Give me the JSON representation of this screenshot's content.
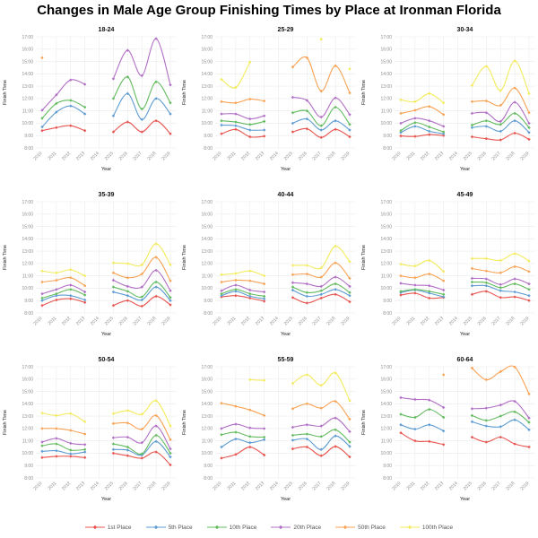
{
  "figure": {
    "title": "Changes in Male Age Group Finishing Times by Place at Ironman Florida"
  },
  "chart_data": {
    "type": "line",
    "title": "Changes in Male Age Group Finishing Times by Place at Ironman Florida",
    "xlabel": "Year",
    "ylabel": "Finish Time",
    "x": [
      2010,
      2011,
      2012,
      2013,
      2014,
      2015,
      2016,
      2017,
      2018,
      2019
    ],
    "ylim": [
      8,
      17
    ],
    "ytick_labels": [
      "8:00",
      "9:00",
      "10:00",
      "11:00",
      "12:00",
      "13:00",
      "14:00",
      "15:00",
      "16:00",
      "17:00"
    ],
    "grid": true,
    "legend_position": "bottom",
    "legend": [
      {
        "name": "1st Place",
        "color": "#e8544f"
      },
      {
        "name": "5th Place",
        "color": "#5e9cd3"
      },
      {
        "name": "10th Place",
        "color": "#63bb5f"
      },
      {
        "name": "20th Place",
        "color": "#b16fc5"
      },
      {
        "name": "50th Place",
        "color": "#f8a254"
      },
      {
        "name": "100th Place",
        "color": "#f3eb5c"
      }
    ],
    "panels": [
      {
        "title": "18-24",
        "series": [
          {
            "name": "1st Place",
            "values": [
              9.4,
              9.65,
              9.8,
              9.4,
              null,
              9.3,
              10.1,
              9.3,
              10.2,
              9.15
            ]
          },
          {
            "name": "5th Place",
            "values": [
              9.7,
              10.9,
              11.4,
              10.75,
              null,
              10.6,
              12.4,
              10.3,
              12.0,
              10.75
            ]
          },
          {
            "name": "10th Place",
            "values": [
              10.4,
              11.6,
              11.85,
              11.3,
              null,
              12.0,
              13.75,
              11.15,
              13.35,
              11.65
            ]
          },
          {
            "name": "20th Place",
            "values": [
              11.05,
              12.3,
              13.5,
              13.15,
              null,
              13.6,
              15.9,
              13.85,
              16.85,
              13.1
            ]
          },
          {
            "name": "50th Place",
            "values": [
              15.3,
              null,
              null,
              null,
              null,
              null,
              null,
              null,
              null,
              null
            ]
          },
          {
            "name": "100th Place",
            "values": [
              null,
              null,
              null,
              null,
              null,
              null,
              null,
              null,
              null,
              null
            ]
          }
        ]
      },
      {
        "title": "25-29",
        "series": [
          {
            "name": "1st Place",
            "values": [
              9.15,
              9.5,
              8.9,
              8.95,
              null,
              9.3,
              9.55,
              8.85,
              9.5,
              8.9
            ]
          },
          {
            "name": "5th Place",
            "values": [
              9.85,
              9.8,
              9.45,
              9.45,
              null,
              10.0,
              10.35,
              9.45,
              10.2,
              9.45
            ]
          },
          {
            "name": "10th Place",
            "values": [
              10.2,
              10.1,
              9.9,
              10.15,
              null,
              10.85,
              11.0,
              9.8,
              11.3,
              9.9
            ]
          },
          {
            "name": "20th Place",
            "values": [
              10.75,
              10.75,
              10.35,
              10.6,
              null,
              12.1,
              11.85,
              10.5,
              12.05,
              10.7
            ]
          },
          {
            "name": "50th Place",
            "values": [
              11.75,
              11.65,
              11.95,
              11.8,
              null,
              14.55,
              15.3,
              12.6,
              14.65,
              12.45
            ]
          },
          {
            "name": "100th Place",
            "values": [
              13.55,
              12.9,
              14.95,
              null,
              null,
              null,
              null,
              16.8,
              null,
              14.4
            ]
          }
        ]
      },
      {
        "title": "30-34",
        "series": [
          {
            "name": "1st Place",
            "values": [
              8.97,
              8.93,
              9.08,
              9.0,
              null,
              8.9,
              8.75,
              8.65,
              9.2,
              8.7
            ]
          },
          {
            "name": "5th Place",
            "values": [
              9.25,
              9.75,
              9.35,
              9.15,
              null,
              9.65,
              9.75,
              9.35,
              10.2,
              9.25
            ]
          },
          {
            "name": "10th Place",
            "values": [
              9.4,
              10.05,
              9.7,
              9.3,
              null,
              9.85,
              10.2,
              9.9,
              10.8,
              9.65
            ]
          },
          {
            "name": "20th Place",
            "values": [
              10.0,
              10.4,
              10.2,
              9.75,
              null,
              10.8,
              10.85,
              10.15,
              11.7,
              10.0
            ]
          },
          {
            "name": "50th Place",
            "values": [
              10.8,
              11.05,
              11.35,
              10.7,
              null,
              11.75,
              11.8,
              11.45,
              12.85,
              10.85
            ]
          },
          {
            "name": "100th Place",
            "values": [
              11.9,
              11.75,
              12.4,
              11.65,
              null,
              13.05,
              14.6,
              12.65,
              15.05,
              12.4
            ]
          }
        ]
      },
      {
        "title": "35-39",
        "series": [
          {
            "name": "1st Place",
            "values": [
              8.6,
              9.05,
              9.15,
              8.85,
              null,
              8.6,
              9.0,
              8.55,
              9.35,
              8.65
            ]
          },
          {
            "name": "5th Place",
            "values": [
              9.0,
              9.4,
              9.4,
              9.05,
              null,
              9.7,
              9.4,
              9.05,
              10.1,
              9.0
            ]
          },
          {
            "name": "10th Place",
            "values": [
              9.2,
              9.55,
              9.9,
              9.45,
              null,
              10.1,
              9.75,
              9.3,
              10.5,
              9.25
            ]
          },
          {
            "name": "20th Place",
            "values": [
              9.55,
              9.9,
              10.25,
              9.7,
              null,
              10.65,
              10.15,
              10.1,
              11.45,
              9.8
            ]
          },
          {
            "name": "50th Place",
            "values": [
              10.5,
              10.65,
              10.85,
              10.2,
              null,
              11.25,
              10.85,
              11.15,
              12.5,
              10.6
            ]
          },
          {
            "name": "100th Place",
            "values": [
              11.4,
              11.25,
              11.5,
              11.0,
              null,
              12.05,
              12.0,
              11.9,
              13.6,
              11.9
            ]
          }
        ]
      },
      {
        "title": "40-44",
        "series": [
          {
            "name": "1st Place",
            "values": [
              9.3,
              9.4,
              9.2,
              8.95,
              null,
              9.25,
              8.8,
              9.2,
              9.5,
              8.9
            ]
          },
          {
            "name": "5th Place",
            "values": [
              9.4,
              9.75,
              9.35,
              9.15,
              null,
              9.85,
              9.35,
              9.5,
              9.9,
              9.4
            ]
          },
          {
            "name": "10th Place",
            "values": [
              9.55,
              9.9,
              9.55,
              9.35,
              null,
              10.1,
              9.65,
              9.8,
              10.35,
              9.65
            ]
          },
          {
            "name": "20th Place",
            "values": [
              9.8,
              10.25,
              9.85,
              9.7,
              null,
              10.45,
              10.35,
              10.15,
              10.9,
              10.15
            ]
          },
          {
            "name": "50th Place",
            "values": [
              10.5,
              10.65,
              10.6,
              10.35,
              null,
              11.1,
              11.15,
              10.9,
              12.05,
              10.8
            ]
          },
          {
            "name": "100th Place",
            "values": [
              11.1,
              11.2,
              11.4,
              11.0,
              null,
              11.85,
              11.85,
              11.65,
              13.4,
              12.15
            ]
          }
        ]
      },
      {
        "title": "45-49",
        "series": [
          {
            "name": "1st Place",
            "values": [
              9.45,
              9.6,
              9.2,
              9.25,
              null,
              9.5,
              9.75,
              9.25,
              9.3,
              9.0
            ]
          },
          {
            "name": "5th Place",
            "values": [
              9.65,
              9.85,
              9.6,
              9.3,
              null,
              10.2,
              10.2,
              9.8,
              9.7,
              9.4
            ]
          },
          {
            "name": "10th Place",
            "values": [
              9.75,
              9.9,
              9.75,
              9.5,
              null,
              10.5,
              10.45,
              10.05,
              10.35,
              9.9
            ]
          },
          {
            "name": "20th Place",
            "values": [
              10.4,
              10.25,
              10.2,
              9.85,
              null,
              10.8,
              10.75,
              10.3,
              10.75,
              10.35
            ]
          },
          {
            "name": "50th Place",
            "values": [
              11.0,
              10.85,
              11.15,
              10.6,
              null,
              11.6,
              11.4,
              11.25,
              11.75,
              11.35
            ]
          },
          {
            "name": "100th Place",
            "values": [
              11.95,
              11.8,
              12.25,
              11.35,
              null,
              12.4,
              12.4,
              12.25,
              12.8,
              12.2
            ]
          }
        ]
      },
      {
        "title": "50-54",
        "series": [
          {
            "name": "1st Place",
            "values": [
              9.65,
              9.75,
              9.75,
              9.65,
              null,
              10.0,
              9.8,
              9.6,
              10.1,
              9.05
            ]
          },
          {
            "name": "5th Place",
            "values": [
              10.15,
              10.2,
              9.95,
              10.1,
              null,
              10.3,
              10.25,
              9.85,
              10.95,
              9.7
            ]
          },
          {
            "name": "10th Place",
            "values": [
              10.6,
              10.75,
              10.25,
              10.3,
              null,
              10.75,
              10.5,
              9.95,
              11.45,
              10.0
            ]
          },
          {
            "name": "20th Place",
            "values": [
              10.9,
              11.2,
              10.8,
              10.7,
              null,
              11.25,
              11.3,
              10.85,
              12.2,
              10.35
            ]
          },
          {
            "name": "50th Place",
            "values": [
              12.0,
              12.0,
              11.85,
              11.55,
              null,
              12.4,
              12.45,
              11.95,
              13.05,
              11.1
            ]
          },
          {
            "name": "100th Place",
            "values": [
              13.25,
              13.05,
              13.2,
              12.55,
              null,
              13.2,
              13.45,
              13.15,
              14.25,
              12.2
            ]
          }
        ]
      },
      {
        "title": "55-59",
        "series": [
          {
            "name": "1st Place",
            "values": [
              9.6,
              9.9,
              10.5,
              9.85,
              null,
              10.35,
              10.5,
              9.8,
              10.55,
              9.7
            ]
          },
          {
            "name": "5th Place",
            "values": [
              10.5,
              11.15,
              10.85,
              11.1,
              null,
              11.05,
              11.15,
              10.3,
              11.4,
              10.55
            ]
          },
          {
            "name": "10th Place",
            "values": [
              11.5,
              11.7,
              11.35,
              11.3,
              null,
              11.45,
              11.55,
              11.35,
              11.9,
              10.9
            ]
          },
          {
            "name": "20th Place",
            "values": [
              12.0,
              12.35,
              12.05,
              12.0,
              null,
              12.1,
              12.3,
              12.2,
              12.85,
              11.75
            ]
          },
          {
            "name": "50th Place",
            "values": [
              14.05,
              13.8,
              13.5,
              13.05,
              null,
              13.6,
              14.0,
              13.65,
              14.2,
              12.75
            ]
          },
          {
            "name": "100th Place",
            "values": [
              null,
              null,
              15.95,
              15.9,
              null,
              15.65,
              16.35,
              15.5,
              16.5,
              14.25
            ]
          }
        ]
      },
      {
        "title": "60-64",
        "series": [
          {
            "name": "1st Place",
            "values": [
              11.65,
              11.0,
              10.95,
              10.7,
              null,
              11.3,
              10.9,
              11.3,
              10.75,
              10.5
            ]
          },
          {
            "name": "5th Place",
            "values": [
              12.3,
              11.95,
              12.3,
              11.8,
              null,
              12.55,
              12.2,
              12.15,
              12.7,
              11.9
            ]
          },
          {
            "name": "10th Place",
            "values": [
              13.15,
              12.9,
              13.55,
              12.9,
              null,
              13.05,
              12.65,
              13.0,
              13.35,
              12.5
            ]
          },
          {
            "name": "20th Place",
            "values": [
              14.5,
              14.35,
              14.3,
              13.7,
              null,
              13.6,
              13.65,
              13.9,
              14.2,
              12.85
            ]
          },
          {
            "name": "50th Place",
            "values": [
              null,
              null,
              null,
              16.35,
              null,
              16.9,
              15.95,
              16.6,
              16.98,
              14.8
            ]
          },
          {
            "name": "100th Place",
            "values": [
              null,
              null,
              null,
              null,
              null,
              null,
              null,
              null,
              null,
              null
            ]
          }
        ]
      }
    ]
  }
}
